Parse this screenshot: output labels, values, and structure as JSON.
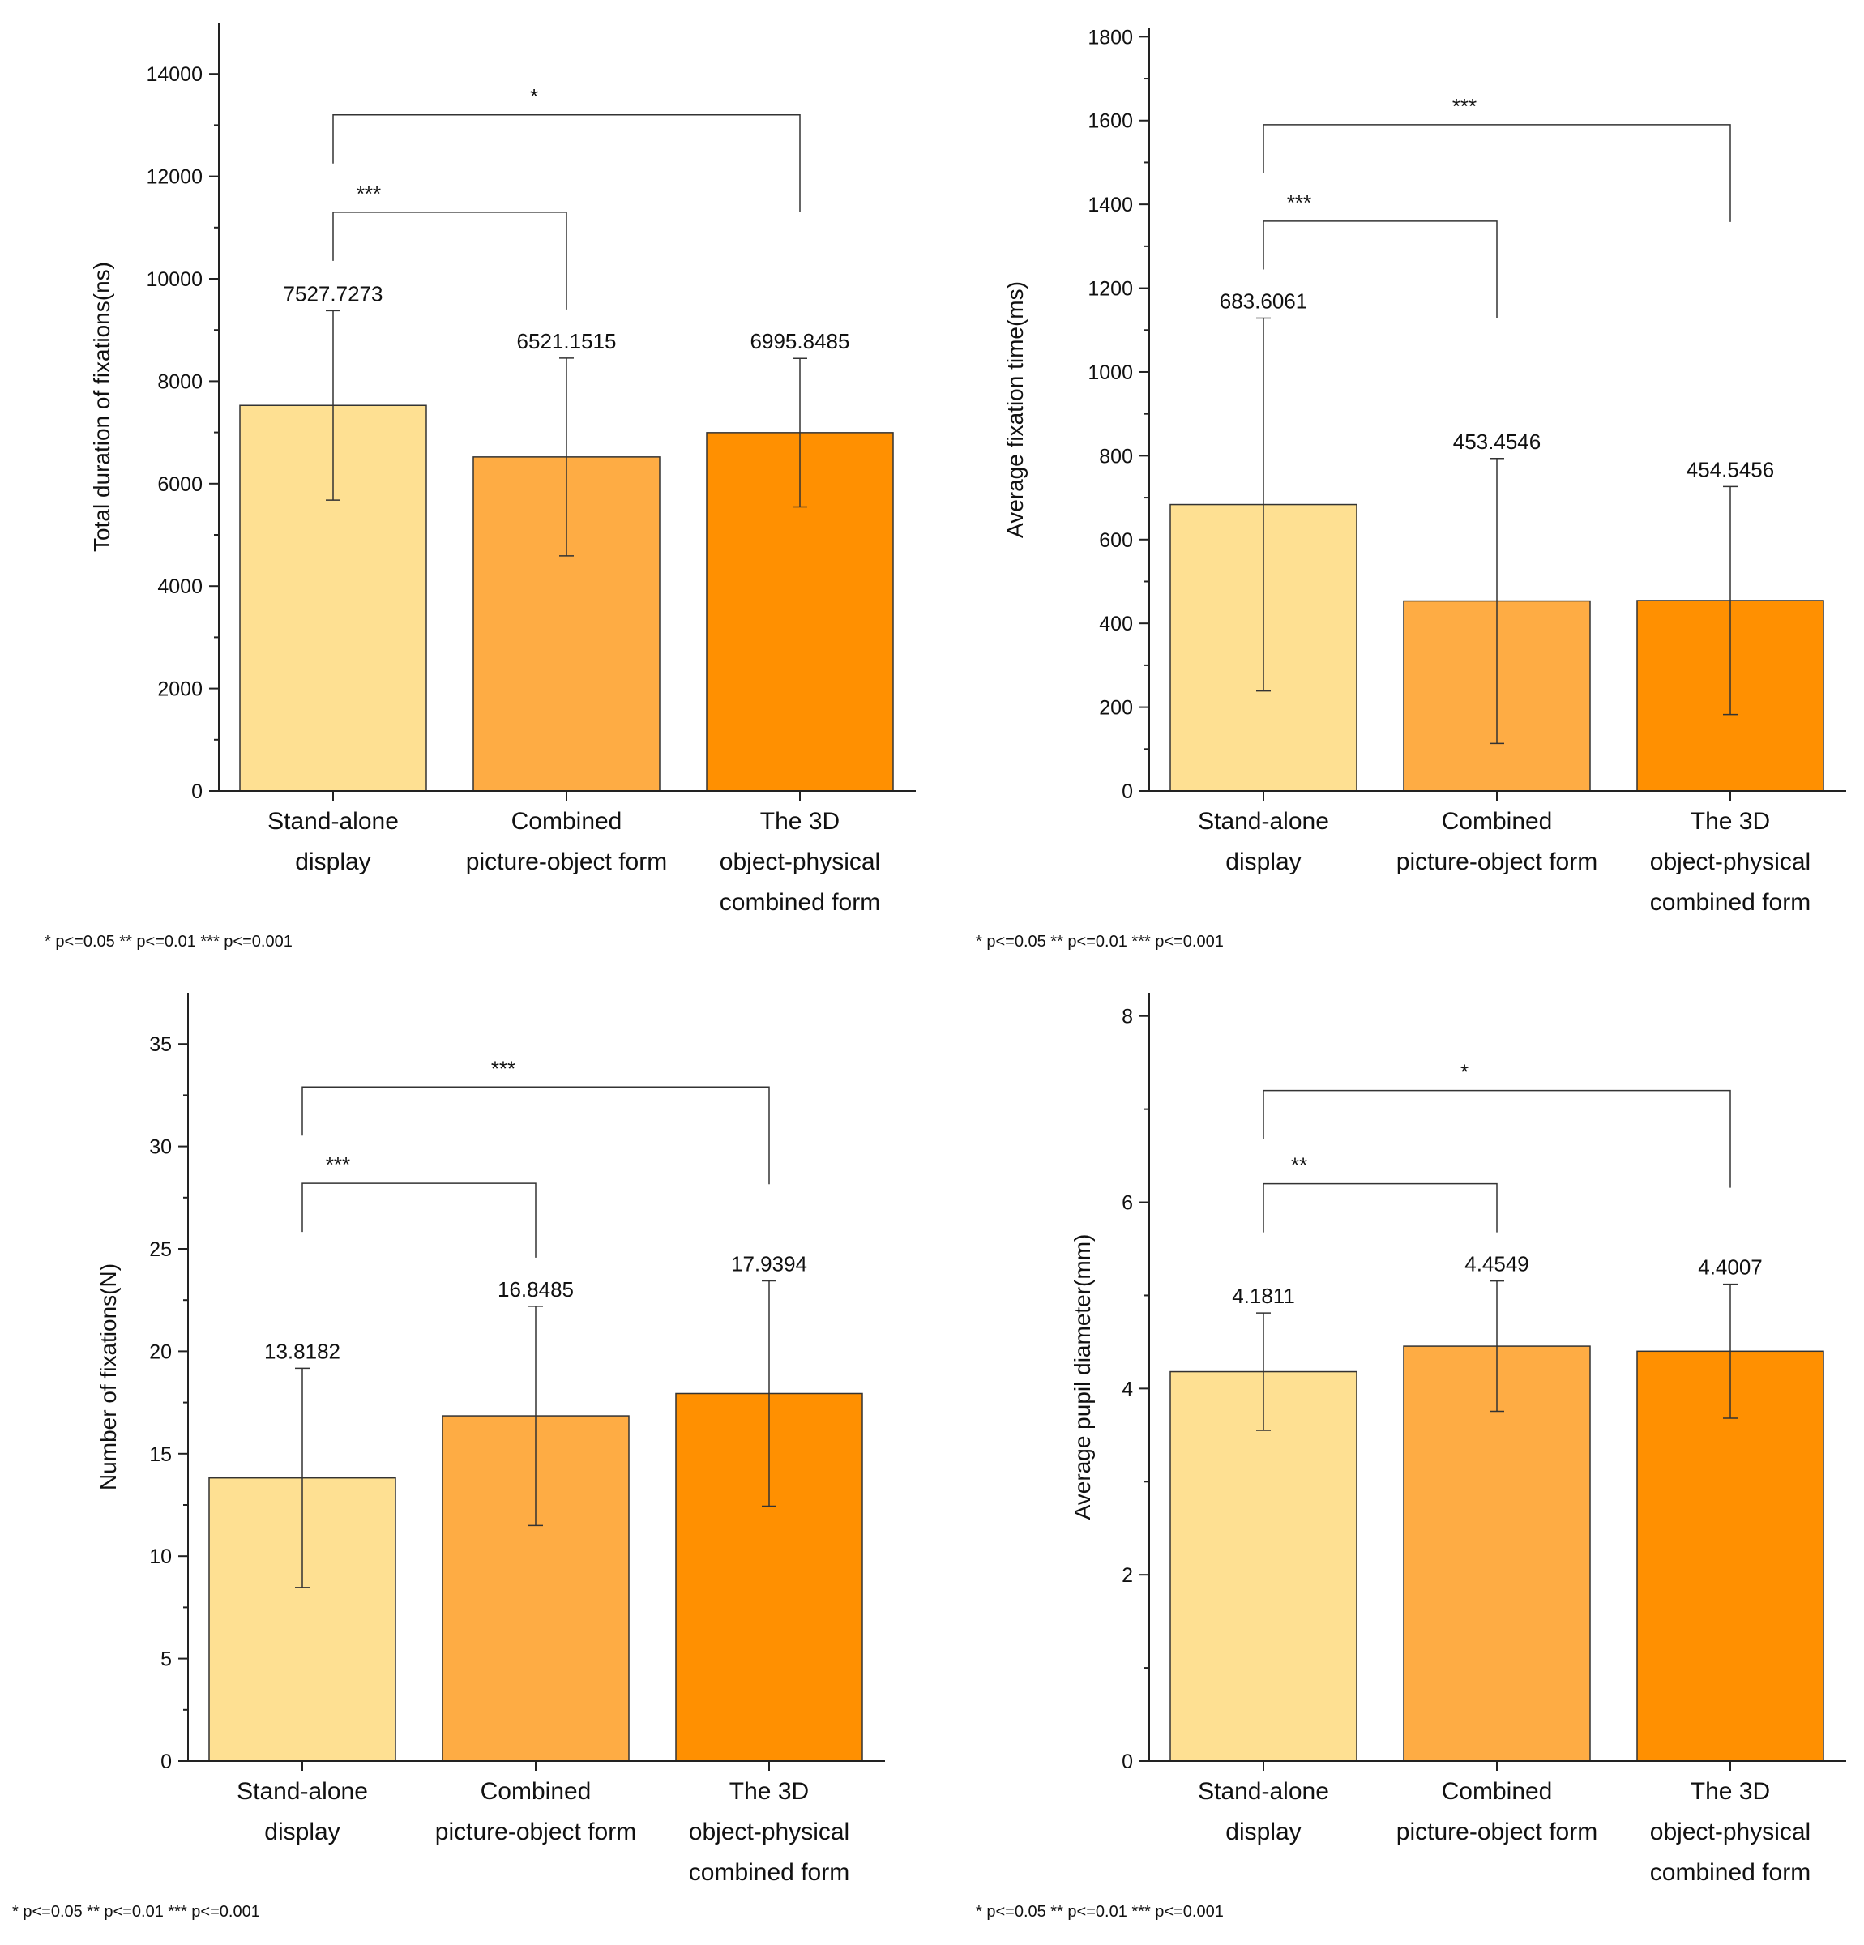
{
  "chart_data": [
    {
      "type": "bar",
      "ylabel": "Total duration of fixations(ns)",
      "xlabel": "",
      "ylim": [
        0,
        15000
      ],
      "yticks": [
        0,
        2000,
        4000,
        6000,
        8000,
        10000,
        12000,
        14000
      ],
      "categories": [
        [
          "Stand-alone",
          "display"
        ],
        [
          "Combined",
          "picture-object form"
        ],
        [
          "The 3D",
          "object-physical",
          "combined form"
        ]
      ],
      "values": [
        7527.7273,
        6521.1515,
        6995.8485
      ],
      "value_labels": [
        "7527.7273",
        "6521.1515",
        "6995.8485"
      ],
      "errors": [
        1850,
        1930,
        1450
      ],
      "bar_colors": [
        "#FEE092",
        "#FEAC44",
        "#FF9001"
      ],
      "significance": [
        {
          "from": 0,
          "to": 1,
          "label": "***",
          "y": 11300
        },
        {
          "from": 0,
          "to": 2,
          "label": "*",
          "y": 13200
        }
      ],
      "footnote": "* p<=0.05    ** p<=0.01    *** p<=0.001"
    },
    {
      "type": "bar",
      "ylabel": "Average fixation time(ms)",
      "xlabel": "",
      "ylim": [
        0,
        1820
      ],
      "yticks": [
        0,
        200,
        400,
        600,
        800,
        1000,
        1200,
        1400,
        1600,
        1800
      ],
      "categories": [
        [
          "Stand-alone",
          "display"
        ],
        [
          "Combined",
          "picture-object form"
        ],
        [
          "The 3D",
          "object-physical",
          "combined form"
        ]
      ],
      "values": [
        683.6061,
        453.4546,
        454.5456
      ],
      "value_labels": [
        "683.6061",
        "453.4546",
        "454.5456"
      ],
      "errors": [
        445,
        340,
        272
      ],
      "bar_colors": [
        "#FEE092",
        "#FEAC44",
        "#FF9001"
      ],
      "significance": [
        {
          "from": 0,
          "to": 1,
          "label": "***",
          "y": 1360
        },
        {
          "from": 0,
          "to": 2,
          "label": "***",
          "y": 1590
        }
      ],
      "footnote": "* p<=0.05    ** p<=0.01    *** p<=0.001"
    },
    {
      "type": "bar",
      "ylabel": "Number of fixations(N)",
      "xlabel": "",
      "ylim": [
        0,
        37.5
      ],
      "yticks": [
        0,
        5,
        10,
        15,
        20,
        25,
        30,
        35
      ],
      "categories": [
        [
          "Stand-alone",
          "display"
        ],
        [
          "Combined",
          "picture-object form"
        ],
        [
          "The 3D",
          "object-physical",
          "combined form"
        ]
      ],
      "values": [
        13.8182,
        16.8485,
        17.9394
      ],
      "value_labels": [
        "13.8182",
        "16.8485",
        "17.9394"
      ],
      "errors": [
        5.35,
        5.35,
        5.5
      ],
      "bar_colors": [
        "#FEE092",
        "#FEAC44",
        "#FF9001"
      ],
      "significance": [
        {
          "from": 0,
          "to": 1,
          "label": "***",
          "y": 28.2
        },
        {
          "from": 0,
          "to": 2,
          "label": "***",
          "y": 32.9
        }
      ],
      "footnote": "* p<=0.05    ** p<=0.01    *** p<=0.001"
    },
    {
      "type": "bar",
      "ylabel": "Average pupil diameter(mm)",
      "xlabel": "",
      "ylim": [
        0,
        8.25
      ],
      "yticks": [
        0,
        2,
        4,
        6,
        8
      ],
      "categories": [
        [
          "Stand-alone",
          "display"
        ],
        [
          "Combined",
          "picture-object form"
        ],
        [
          "The 3D",
          "object-physical",
          "combined form"
        ]
      ],
      "values": [
        4.1811,
        4.4549,
        4.4007
      ],
      "value_labels": [
        "4.1811",
        "4.4549",
        "4.4007"
      ],
      "errors": [
        0.63,
        0.7,
        0.72
      ],
      "bar_colors": [
        "#FEE092",
        "#FEAC44",
        "#FF9001"
      ],
      "significance": [
        {
          "from": 0,
          "to": 1,
          "label": "**",
          "y": 6.2
        },
        {
          "from": 0,
          "to": 2,
          "label": "*",
          "y": 7.2
        }
      ],
      "footnote": "* p<=0.05    ** p<=0.01    *** p<=0.001"
    }
  ]
}
